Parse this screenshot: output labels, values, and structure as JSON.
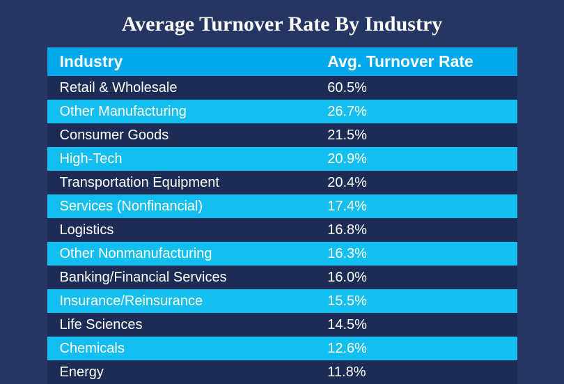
{
  "title": "Average Turnover Rate By Industry",
  "title_fontsize": 30,
  "background_color": "#253663",
  "table": {
    "type": "table",
    "header_bg": "#00a8ea",
    "row_bg_dark": "#1d2c55",
    "row_bg_light": "#15bef0",
    "text_color": "#ffffff",
    "header_fontsize": 23,
    "body_fontsize": 20,
    "columns": [
      {
        "key": "industry",
        "label": "Industry",
        "width_pct": 57
      },
      {
        "key": "rate",
        "label": "Avg. Turnover Rate",
        "width_pct": 43
      }
    ],
    "rows": [
      {
        "industry": "Retail & Wholesale",
        "rate": "60.5%"
      },
      {
        "industry": "Other Manufacturing",
        "rate": "26.7%"
      },
      {
        "industry": "Consumer Goods",
        "rate": "21.5%"
      },
      {
        "industry": "High-Tech",
        "rate": "20.9%"
      },
      {
        "industry": "Transportation Equipment",
        "rate": "20.4%"
      },
      {
        "industry": "Services (Nonfinancial)",
        "rate": "17.4%"
      },
      {
        "industry": "Logistics",
        "rate": "16.8%"
      },
      {
        "industry": "Other Nonmanufacturing",
        "rate": "16.3%"
      },
      {
        "industry": "Banking/Financial Services",
        "rate": "16.0%"
      },
      {
        "industry": "Insurance/Reinsurance",
        "rate": "15.5%"
      },
      {
        "industry": "Life Sciences",
        "rate": "14.5%"
      },
      {
        "industry": "Chemicals",
        "rate": "12.6%"
      },
      {
        "industry": "Energy",
        "rate": "11.8%"
      }
    ]
  }
}
